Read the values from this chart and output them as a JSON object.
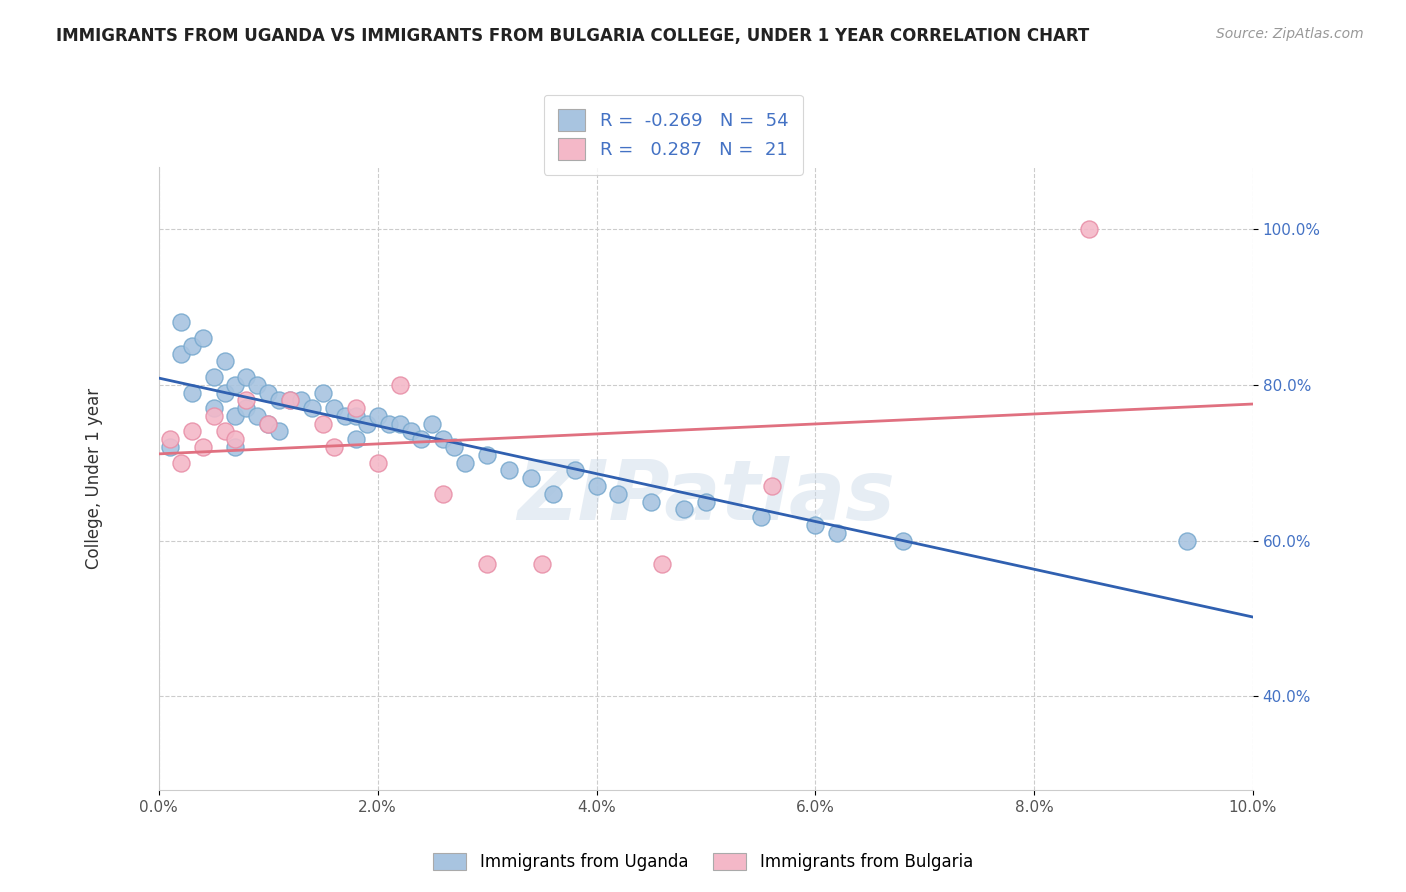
{
  "title": "IMMIGRANTS FROM UGANDA VS IMMIGRANTS FROM BULGARIA COLLEGE, UNDER 1 YEAR CORRELATION CHART",
  "source": "Source: ZipAtlas.com",
  "ylabel": "College, Under 1 year",
  "xlim": [
    0.0,
    0.1
  ],
  "ylim": [
    0.28,
    1.08
  ],
  "ytick_labels": [
    "40.0%",
    "60.0%",
    "80.0%",
    "100.0%"
  ],
  "ytick_values": [
    0.4,
    0.6,
    0.8,
    1.0
  ],
  "xtick_labels": [
    "0.0%",
    "2.0%",
    "4.0%",
    "6.0%",
    "8.0%",
    "10.0%"
  ],
  "xtick_values": [
    0.0,
    0.02,
    0.04,
    0.06,
    0.08,
    0.1
  ],
  "uganda_color": "#a8c4e0",
  "uganda_edge_color": "#7aaacf",
  "bulgaria_color": "#f4b8c8",
  "bulgaria_edge_color": "#e890a8",
  "uganda_line_color": "#3060b0",
  "bulgaria_line_color": "#e07080",
  "legend_r_uganda": "-0.269",
  "legend_n_uganda": "54",
  "legend_r_bulgaria": "0.287",
  "legend_n_bulgaria": "21",
  "watermark": "ZIPatlas",
  "title_fontsize": 12,
  "source_fontsize": 10,
  "tick_fontsize": 11,
  "ylabel_fontsize": 12,
  "legend_fontsize": 13,
  "uganda_x": [
    0.001,
    0.002,
    0.002,
    0.003,
    0.003,
    0.004,
    0.005,
    0.005,
    0.006,
    0.006,
    0.007,
    0.007,
    0.007,
    0.008,
    0.008,
    0.009,
    0.009,
    0.01,
    0.01,
    0.011,
    0.011,
    0.012,
    0.013,
    0.014,
    0.015,
    0.016,
    0.017,
    0.018,
    0.018,
    0.019,
    0.02,
    0.021,
    0.022,
    0.023,
    0.024,
    0.025,
    0.026,
    0.027,
    0.028,
    0.03,
    0.032,
    0.034,
    0.036,
    0.038,
    0.04,
    0.042,
    0.045,
    0.048,
    0.05,
    0.055,
    0.06,
    0.062,
    0.068,
    0.094
  ],
  "uganda_y": [
    0.72,
    0.88,
    0.84,
    0.85,
    0.79,
    0.86,
    0.81,
    0.77,
    0.83,
    0.79,
    0.8,
    0.76,
    0.72,
    0.81,
    0.77,
    0.8,
    0.76,
    0.79,
    0.75,
    0.78,
    0.74,
    0.78,
    0.78,
    0.77,
    0.79,
    0.77,
    0.76,
    0.76,
    0.73,
    0.75,
    0.76,
    0.75,
    0.75,
    0.74,
    0.73,
    0.75,
    0.73,
    0.72,
    0.7,
    0.71,
    0.69,
    0.68,
    0.66,
    0.69,
    0.67,
    0.66,
    0.65,
    0.64,
    0.65,
    0.63,
    0.62,
    0.61,
    0.6,
    0.6
  ],
  "bulgaria_x": [
    0.001,
    0.002,
    0.003,
    0.004,
    0.005,
    0.006,
    0.007,
    0.008,
    0.01,
    0.012,
    0.015,
    0.016,
    0.018,
    0.02,
    0.022,
    0.026,
    0.03,
    0.035,
    0.046,
    0.056,
    0.085
  ],
  "bulgaria_y": [
    0.73,
    0.7,
    0.74,
    0.72,
    0.76,
    0.74,
    0.73,
    0.78,
    0.75,
    0.78,
    0.75,
    0.72,
    0.77,
    0.7,
    0.8,
    0.66,
    0.57,
    0.57,
    0.57,
    0.67,
    1.0
  ]
}
